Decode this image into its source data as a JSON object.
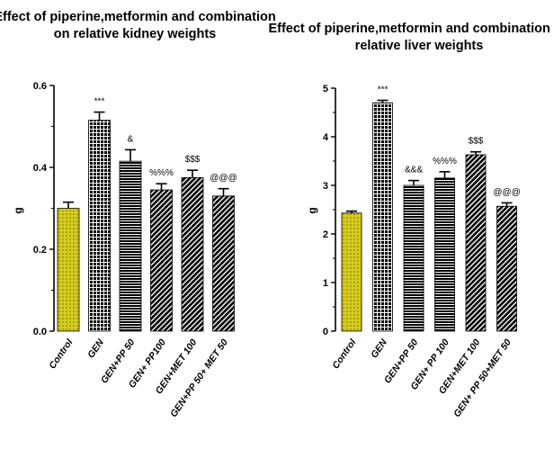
{
  "chart_data": [
    {
      "type": "bar",
      "title_lines": [
        "Effect of piperine,metformin and combination",
        "on relative kidney weights"
      ],
      "ylabel": "g",
      "ylim": [
        0,
        0.6
      ],
      "yticks": [
        "0.0",
        "0.2",
        "0.4",
        "0.6"
      ],
      "categories": [
        "Control",
        "GEN",
        "GEN+PP 50",
        "GEN+ PP100",
        "GEN+MET 100",
        "GEN+PP 50+ MET 50"
      ],
      "values": [
        0.3,
        0.515,
        0.415,
        0.345,
        0.375,
        0.33
      ],
      "errors": [
        0.015,
        0.02,
        0.028,
        0.015,
        0.018,
        0.018
      ],
      "annotations": [
        "",
        "***",
        "&",
        "%%%",
        "$$$",
        "@@@"
      ],
      "colors": [
        "#d4cc1e",
        "#f0405a",
        "#18a8b8",
        "#2222cc",
        "#7a1a9a",
        "#33cc33"
      ]
    },
    {
      "type": "bar",
      "title_lines": [
        "Effect of piperine,metformin and combination on",
        "relative liver weights"
      ],
      "ylabel": "g",
      "ylim": [
        0,
        5
      ],
      "yticks": [
        "0",
        "1",
        "2",
        "3",
        "4",
        "5"
      ],
      "categories": [
        "Control",
        "GEN",
        "GEN+PP 50",
        "GEN+ PP 100",
        "GEN+MET 100",
        "GEN+ PP 50+MET 50"
      ],
      "values": [
        2.43,
        4.7,
        3.0,
        3.15,
        3.63,
        2.57
      ],
      "errors": [
        0.04,
        0.05,
        0.1,
        0.13,
        0.06,
        0.07
      ],
      "annotations": [
        "",
        "***",
        "&&&",
        "%%%",
        "$$$",
        "@@@"
      ],
      "colors": [
        "#d4cc1e",
        "#ff2222",
        "#3388ee",
        "#2233dd",
        "#7a1a9a",
        "#33cc33"
      ]
    }
  ]
}
